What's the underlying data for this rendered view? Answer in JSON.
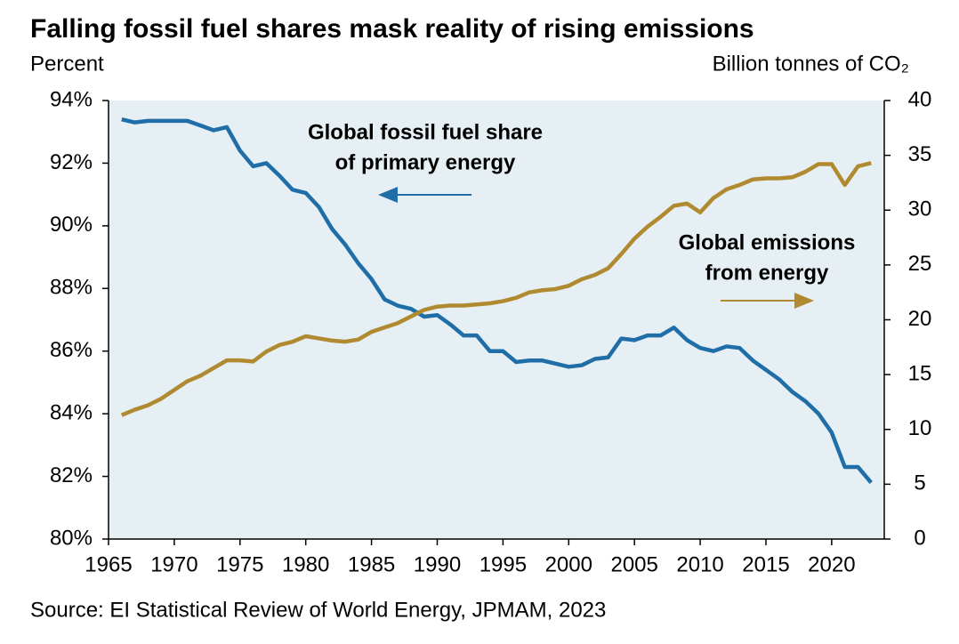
{
  "chart_data": {
    "type": "line",
    "title": "Falling fossil fuel shares mask reality of rising emissions",
    "y_label": "Percent",
    "y2_label": "Billion tonnes of CO₂",
    "source": "Source: EI Statistical Review of World Energy, JPMAM, 2023",
    "annotations": [
      {
        "text": [
          "Global fossil fuel share",
          "of primary energy"
        ]
      },
      {
        "text": [
          "Global emissions",
          "from energy"
        ]
      }
    ],
    "x": [
      1966,
      1967,
      1968,
      1969,
      1970,
      1971,
      1972,
      1973,
      1974,
      1975,
      1976,
      1977,
      1978,
      1979,
      1980,
      1981,
      1982,
      1983,
      1984,
      1985,
      1986,
      1987,
      1988,
      1989,
      1990,
      1991,
      1992,
      1993,
      1994,
      1995,
      1996,
      1997,
      1998,
      1999,
      2000,
      2001,
      2002,
      2003,
      2004,
      2005,
      2006,
      2007,
      2008,
      2009,
      2010,
      2011,
      2012,
      2013,
      2014,
      2015,
      2016,
      2017,
      2018,
      2019,
      2020,
      2021,
      2022,
      2023
    ],
    "series": [
      {
        "name": "Global fossil fuel share of primary energy",
        "color": "#1f6ea8",
        "axis": "y",
        "values": [
          93.4,
          93.3,
          93.35,
          93.35,
          93.35,
          93.35,
          93.2,
          93.05,
          93.15,
          92.4,
          91.9,
          92.0,
          91.6,
          91.15,
          91.05,
          90.6,
          89.9,
          89.4,
          88.8,
          88.3,
          87.65,
          87.45,
          87.35,
          87.1,
          87.15,
          86.85,
          86.5,
          86.5,
          86.0,
          86.0,
          85.65,
          85.7,
          85.7,
          85.6,
          85.5,
          85.55,
          85.75,
          85.8,
          86.4,
          86.35,
          86.5,
          86.5,
          86.75,
          86.35,
          86.1,
          86.0,
          86.15,
          86.1,
          85.7,
          85.4,
          85.1,
          84.7,
          84.4,
          84.0,
          83.4,
          82.3,
          82.3,
          81.8
        ]
      },
      {
        "name": "Global emissions from energy",
        "color": "#b08a30",
        "axis": "y2",
        "values": [
          11.3,
          11.8,
          12.2,
          12.8,
          13.6,
          14.4,
          14.9,
          15.6,
          16.3,
          16.3,
          16.2,
          17.1,
          17.7,
          18.0,
          18.5,
          18.3,
          18.1,
          18.0,
          18.2,
          18.9,
          19.3,
          19.7,
          20.3,
          20.9,
          21.2,
          21.3,
          21.3,
          21.4,
          21.5,
          21.7,
          22.0,
          22.5,
          22.7,
          22.8,
          23.1,
          23.7,
          24.1,
          24.7,
          26.0,
          27.4,
          28.5,
          29.4,
          30.4,
          30.6,
          29.8,
          31.1,
          31.9,
          32.3,
          32.8,
          32.9,
          32.9,
          33.0,
          33.5,
          34.2,
          34.2,
          32.3,
          34.0,
          34.3
        ]
      }
    ],
    "xlim": [
      1965,
      2024
    ],
    "xticks": [
      1965,
      1970,
      1975,
      1980,
      1985,
      1990,
      1995,
      2000,
      2005,
      2010,
      2015,
      2020
    ],
    "ylim": [
      80,
      94
    ],
    "yticks": [
      {
        "value": 80,
        "label": "80%"
      },
      {
        "value": 82,
        "label": "82%"
      },
      {
        "value": 84,
        "label": "84%"
      },
      {
        "value": 86,
        "label": "86%"
      },
      {
        "value": 88,
        "label": "88%"
      },
      {
        "value": 90,
        "label": "90%"
      },
      {
        "value": 92,
        "label": "92%"
      },
      {
        "value": 94,
        "label": "94%"
      }
    ],
    "y2lim": [
      0,
      40
    ],
    "y2ticks": [
      0,
      5,
      10,
      15,
      20,
      25,
      30,
      35,
      40
    ],
    "plot_background": "#e6eff3"
  }
}
